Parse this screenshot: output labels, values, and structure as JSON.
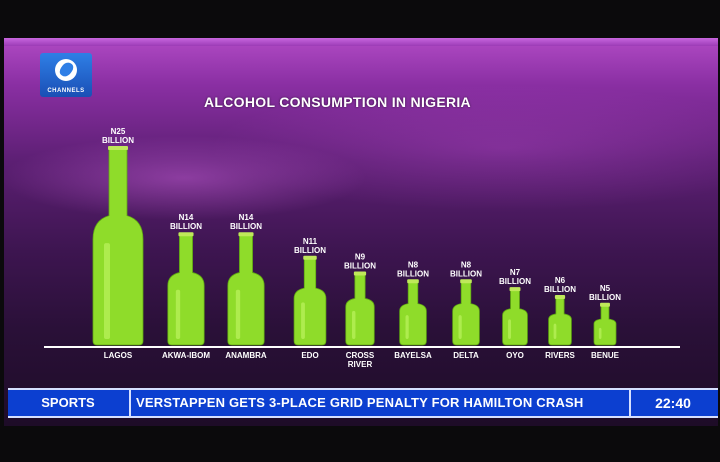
{
  "channel": {
    "logo_text": "CHANNELS"
  },
  "chart_data": {
    "type": "bar",
    "title": "ALCOHOL CONSUMPTION IN NIGERIA",
    "unit": "BILLION",
    "categories": [
      "LAGOS",
      "AKWA-IBOM",
      "ANAMBRA",
      "EDO",
      "CROSS RIVER",
      "BAYELSA",
      "DELTA",
      "OYO",
      "RIVERS",
      "BENUE"
    ],
    "values": [
      25,
      14,
      14,
      11,
      9,
      8,
      8,
      7,
      6,
      5
    ],
    "value_labels": [
      "N25",
      "N14",
      "N14",
      "N11",
      "N9",
      "N8",
      "N8",
      "N7",
      "N6",
      "N5"
    ],
    "category_label_lines": [
      [
        "LAGOS"
      ],
      [
        "AKWA-IBOM"
      ],
      [
        "ANAMBRA"
      ],
      [
        "EDO"
      ],
      [
        "CROSS",
        "RIVER"
      ],
      [
        "BAYELSA"
      ],
      [
        "DELTA"
      ],
      [
        "OYO"
      ],
      [
        "RIVERS"
      ],
      [
        "BENUE"
      ]
    ],
    "mark": "bottle",
    "colors": {
      "bottle": "#8fdc2a",
      "bottle_highlight": "#d4ff7a",
      "label": "#ffffff",
      "baseline": "#ffffff"
    }
  },
  "ticker": {
    "section": "SPORTS",
    "headline": "VERSTAPPEN GETS 3-PLACE GRID PENALTY FOR HAMILTON CRASH",
    "time": "22:40"
  }
}
